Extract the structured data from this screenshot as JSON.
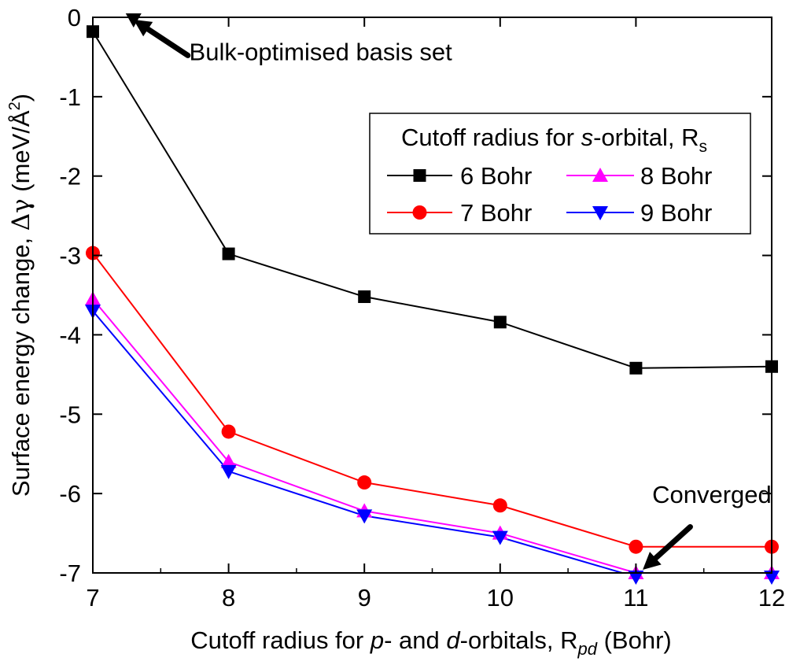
{
  "chart_data": {
    "type": "line",
    "title": "",
    "xlabel": {
      "part1": "Cutoff radius for ",
      "p": "p",
      "part2": "- and ",
      "d": "d",
      "part3": "-orbitals, R",
      "sub": "pd",
      "part4": " (Bohr)"
    },
    "ylabel": {
      "part1": "Surface energy change, ",
      "symbol": "Δγ",
      "part2": " (meV/Å",
      "sup": "2",
      "part3": ")"
    },
    "xlim": [
      7,
      12
    ],
    "ylim": [
      -7,
      0
    ],
    "xticks": [
      7,
      8,
      9,
      10,
      11,
      12
    ],
    "yticks": [
      0,
      -1,
      -2,
      -3,
      -4,
      -5,
      -6,
      -7
    ],
    "legend": {
      "title": {
        "part1": "Cutoff radius for ",
        "s": "s",
        "part2": "-orbital, R",
        "sub": "s"
      },
      "position": "upper-right"
    },
    "series": [
      {
        "name": "6 Bohr",
        "color": "#000000",
        "marker": "square",
        "x": [
          7,
          8,
          9,
          10,
          11,
          12
        ],
        "y": [
          -0.18,
          -2.98,
          -3.52,
          -3.84,
          -4.42,
          -4.4
        ]
      },
      {
        "name": "7 Bohr",
        "color": "#ff0000",
        "marker": "circle",
        "x": [
          7,
          8,
          9,
          10,
          11,
          12
        ],
        "y": [
          -2.97,
          -5.22,
          -5.86,
          -6.15,
          -6.67,
          -6.67
        ]
      },
      {
        "name": "8 Bohr",
        "color": "#ff00ff",
        "marker": "triangle-up",
        "x": [
          7,
          8,
          9,
          10,
          11,
          12
        ],
        "y": [
          -3.55,
          -5.6,
          -6.22,
          -6.5,
          -7.0,
          -7.0
        ]
      },
      {
        "name": "9 Bohr",
        "color": "#0000ff",
        "marker": "triangle-down",
        "x": [
          7,
          8,
          9,
          10,
          11,
          12
        ],
        "y": [
          -3.7,
          -5.72,
          -6.28,
          -6.55,
          -7.05,
          -7.05
        ]
      }
    ],
    "extra_points": [
      {
        "name": "Bulk-optimised basis set point",
        "marker": "triangle-down",
        "color": "#000000",
        "x": 7.3,
        "y": -0.03
      }
    ],
    "annotations": [
      {
        "text": "Bulk-optimised basis set",
        "target": [
          7.3,
          -0.03
        ],
        "from": [
          7.7,
          -0.48
        ],
        "text_pos": [
          7.71,
          -0.54
        ]
      },
      {
        "text": "Converged",
        "target": [
          11.05,
          -6.96
        ],
        "from": [
          11.4,
          -6.42
        ],
        "text_pos": [
          11.12,
          -6.12
        ]
      }
    ]
  }
}
